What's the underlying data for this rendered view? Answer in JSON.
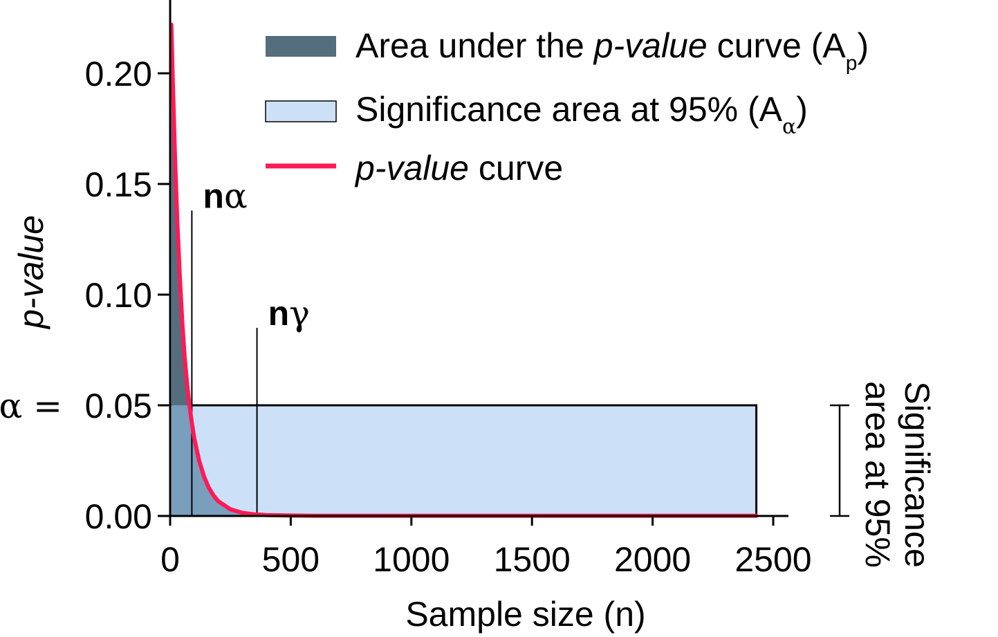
{
  "chart_data": {
    "type": "line",
    "xlabel": "Sample size (n)",
    "ylabel": "p-value",
    "xlim": [
      0,
      2500
    ],
    "ylim": [
      0,
      0.2
    ],
    "x_ticks": [
      "0",
      "500",
      "1000",
      "1500",
      "2000",
      "2500"
    ],
    "x_tick_values": [
      0,
      500,
      1000,
      1500,
      2000,
      2500
    ],
    "y_ticks": [
      "0.00",
      "0.05",
      "0.10",
      "0.15",
      "0.20"
    ],
    "y_tick_values": [
      0,
      0.05,
      0.1,
      0.15,
      0.2
    ],
    "alpha_label": "α =",
    "alpha": 0.05,
    "significance_area_xmax": 2430,
    "series": [
      {
        "name": "p-value curve",
        "color": "#ff1a55",
        "x": [
          5,
          10,
          20,
          30,
          40,
          50,
          60,
          70,
          80,
          90,
          100,
          120,
          140,
          160,
          180,
          200,
          250,
          300,
          350,
          400,
          500,
          600,
          800,
          1000,
          1500,
          2000,
          2430
        ],
        "y": [
          0.222,
          0.2,
          0.162,
          0.132,
          0.108,
          0.088,
          0.072,
          0.06,
          0.05,
          0.042,
          0.035,
          0.025,
          0.018,
          0.0128,
          0.0092,
          0.0066,
          0.003,
          0.0014,
          0.0007,
          0.0004,
          0.0002,
          0.0001,
          0.0001,
          0.0001,
          0.0001,
          0.0001,
          0.0001
        ]
      }
    ],
    "legend": {
      "placement": "top-right",
      "items": [
        {
          "key": "area-p",
          "parts": [
            "Area under the ",
            "p-value",
            " curve (A",
            "p",
            ")"
          ],
          "color": "#546e7e"
        },
        {
          "key": "area-alpha",
          "parts": [
            "Significance area at 95% (A",
            "α",
            ")"
          ],
          "color": "#cce1f8"
        },
        {
          "key": "curve",
          "parts": [
            "p-value",
            " curve"
          ],
          "color": "#ff1a55"
        }
      ]
    },
    "annotations": {
      "n_alpha": {
        "bold": "n",
        "greek": "α",
        "x": 90,
        "y_top": 0.138
      },
      "n_gamma": {
        "bold": "n",
        "greek": "γ",
        "x": 360,
        "y_top": 0.085
      }
    },
    "right_bracket": {
      "line1": "Significance",
      "line2": "area at 95%",
      "y_range": [
        0,
        0.05
      ]
    },
    "colors": {
      "area_p_dark": "#546e7e",
      "area_p_light": "#7a9fbd",
      "area_alpha": "#cce1f8",
      "curve": "#ff1a55",
      "axis": "#000000"
    }
  }
}
